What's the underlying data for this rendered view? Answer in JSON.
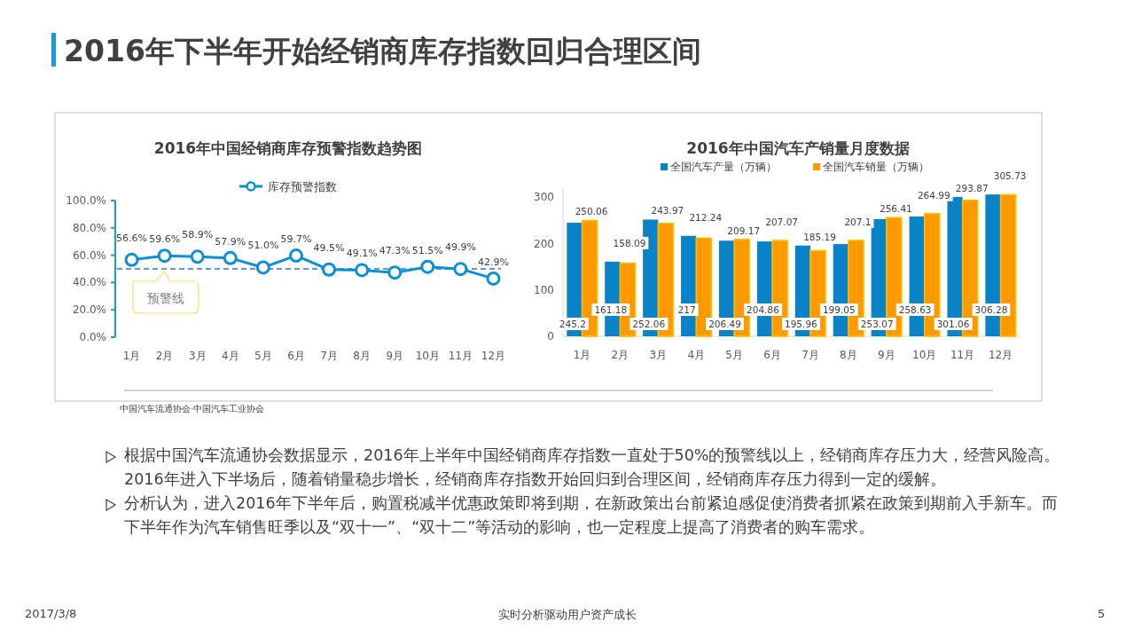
{
  "chart_data": [
    {
      "type": "line",
      "title": "2016年中国经销商库存预警指数趋势图",
      "categories": [
        "1月",
        "2月",
        "3月",
        "4月",
        "5月",
        "6月",
        "7月",
        "8月",
        "9月",
        "10月",
        "11月",
        "12月"
      ],
      "series": [
        {
          "name": "库存预警指数",
          "color": "#0b8fd6",
          "values": [
            56.6,
            59.6,
            58.9,
            57.9,
            51.0,
            59.7,
            49.5,
            49.1,
            47.3,
            51.5,
            49.9,
            42.9
          ],
          "value_labels": [
            "56.6%",
            "59.6%",
            "58.9%",
            "57.9%",
            "51.0%",
            "59.7%",
            "49.5%",
            "49.1%",
            "47.3%",
            "51.5%",
            "49.9%",
            "42.9%"
          ]
        }
      ],
      "ylim": [
        0,
        100
      ],
      "yticks": [
        {
          "value": 0,
          "label": "0.0%"
        },
        {
          "value": 20,
          "label": "20.0%"
        },
        {
          "value": 40,
          "label": "40.0%"
        },
        {
          "value": 60,
          "label": "60.0%"
        },
        {
          "value": 80,
          "label": "80.0%"
        },
        {
          "value": 100,
          "label": "100.0%"
        }
      ],
      "ref_lines": [
        {
          "axis": "y",
          "value": 50,
          "label": "预警线",
          "line_style": "dashed",
          "color": "#2e75c6"
        }
      ],
      "marker": "circle",
      "legend": "top",
      "annotations": [
        "中国汽车流通协会·中国汽车工业协会"
      ]
    },
    {
      "type": "bar",
      "title": "2016年中国汽车产销量月度数据",
      "categories": [
        "1月",
        "2月",
        "3月",
        "4月",
        "5月",
        "6月",
        "7月",
        "8月",
        "9月",
        "10月",
        "11月",
        "12月"
      ],
      "series": [
        {
          "name": "全国汽车产量（万辆）",
          "color": "#0a82c8",
          "values": [
            245.2,
            161.18,
            252.06,
            217,
            206.49,
            204.86,
            195.96,
            199.05,
            253.07,
            258.63,
            301.06,
            306.28
          ]
        },
        {
          "name": "全国汽车销量（万辆）",
          "color": "#ff9900",
          "values": [
            250.06,
            158.09,
            243.97,
            212.24,
            209.17,
            207.07,
            185.19,
            207.1,
            256.41,
            264.99,
            293.87,
            305.73
          ]
        }
      ],
      "ylim": [
        0,
        320
      ],
      "yticks": [
        0,
        100,
        200,
        300
      ],
      "data_labels": true,
      "legend": "top"
    },
    {
      "type": "other",
      "title": "2016年下半年开始经销商库存指数回归合理区间",
      "annotations": [
        "根据中国汽车流通协会数据显示，2016年上半年中国经销商库存指数一直处于50%的预警线以上，经销商库存压力大，经营风险高。2016年进入下半场后，随着销量稳步增长，经销商库存指数开始回归到合理区间，经销商库存压力得到一定的缓解。",
        "分析认为，进入2016年下半年后，购置税减半优惠政策即将到期，在新政策出台前紧迫感促使消费者抓紧在政策到期前入手新车。而下半年作为汽车销售旺季以及“双十一”、“双十二”等活动的影响，也一定程度上提高了消费者的购车需求。",
        "2017/3/8",
        "实时分析驱动用户资产成长",
        "5"
      ]
    }
  ]
}
